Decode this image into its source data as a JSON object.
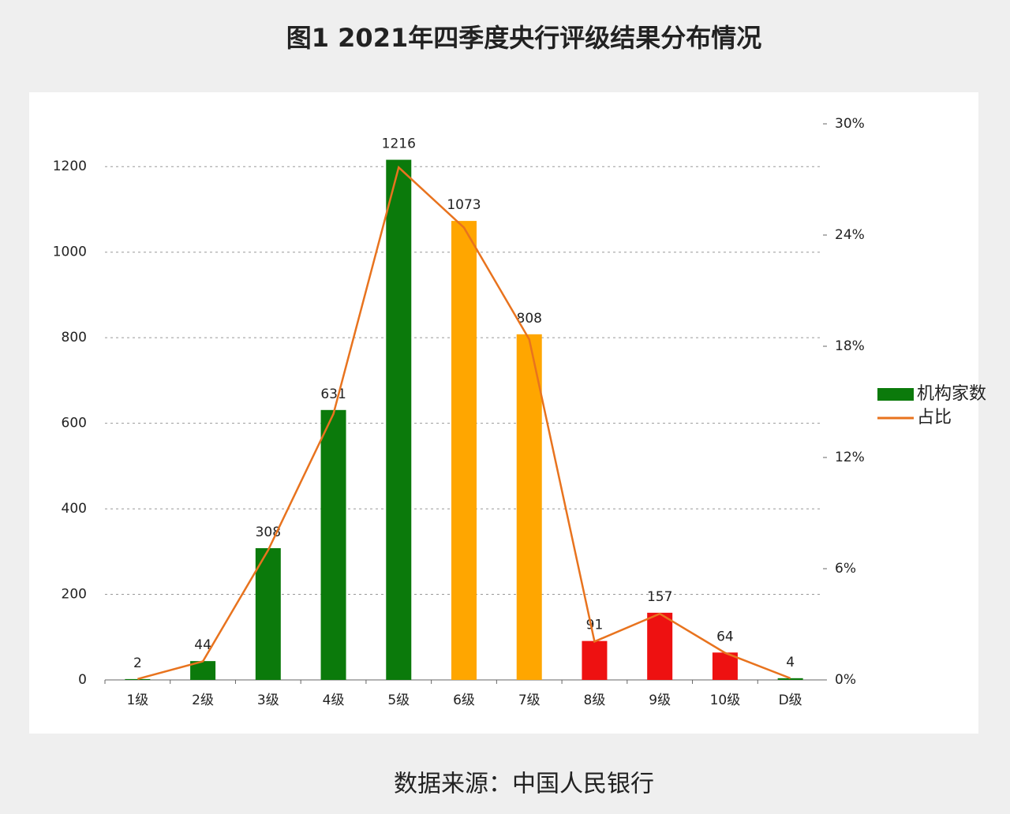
{
  "chart_data": {
    "type": "bar",
    "title": "图1 2021年四季度央行评级结果分布情况",
    "source": "数据来源：中国人民银行",
    "categories": [
      "1级",
      "2级",
      "3级",
      "4级",
      "5级",
      "6级",
      "7级",
      "8级",
      "9级",
      "10级",
      "D级"
    ],
    "series": [
      {
        "name": "机构家数",
        "color": "#0b7a0b",
        "colors": [
          "#0b7a0b",
          "#0b7a0b",
          "#0b7a0b",
          "#0b7a0b",
          "#0b7a0b",
          "#ffa600",
          "#ffa600",
          "#ee1111",
          "#ee1111",
          "#ee1111",
          "#0b7a0b"
        ],
        "values": [
          2,
          44,
          308,
          631,
          1216,
          1073,
          808,
          91,
          157,
          64,
          4
        ]
      },
      {
        "name": "占比",
        "type": "line",
        "axis": "y2",
        "color": "#e8731e",
        "values": [
          0.05,
          1.0,
          7.0,
          14.35,
          27.65,
          24.4,
          18.37,
          2.07,
          3.57,
          1.46,
          0.09
        ]
      }
    ],
    "ylim": [
      0,
      1300
    ],
    "yticks": [
      0,
      200,
      400,
      600,
      800,
      1000,
      1200
    ],
    "y2lim": [
      0,
      30
    ],
    "y2ticks": [
      {
        "value": 0,
        "label": "0%"
      },
      {
        "value": 6,
        "label": "6%"
      },
      {
        "value": 12,
        "label": "12%"
      },
      {
        "value": 18,
        "label": "18%"
      },
      {
        "value": 24,
        "label": "24%"
      },
      {
        "value": 30,
        "label": "30%"
      }
    ],
    "grid": true,
    "legend": "right"
  }
}
